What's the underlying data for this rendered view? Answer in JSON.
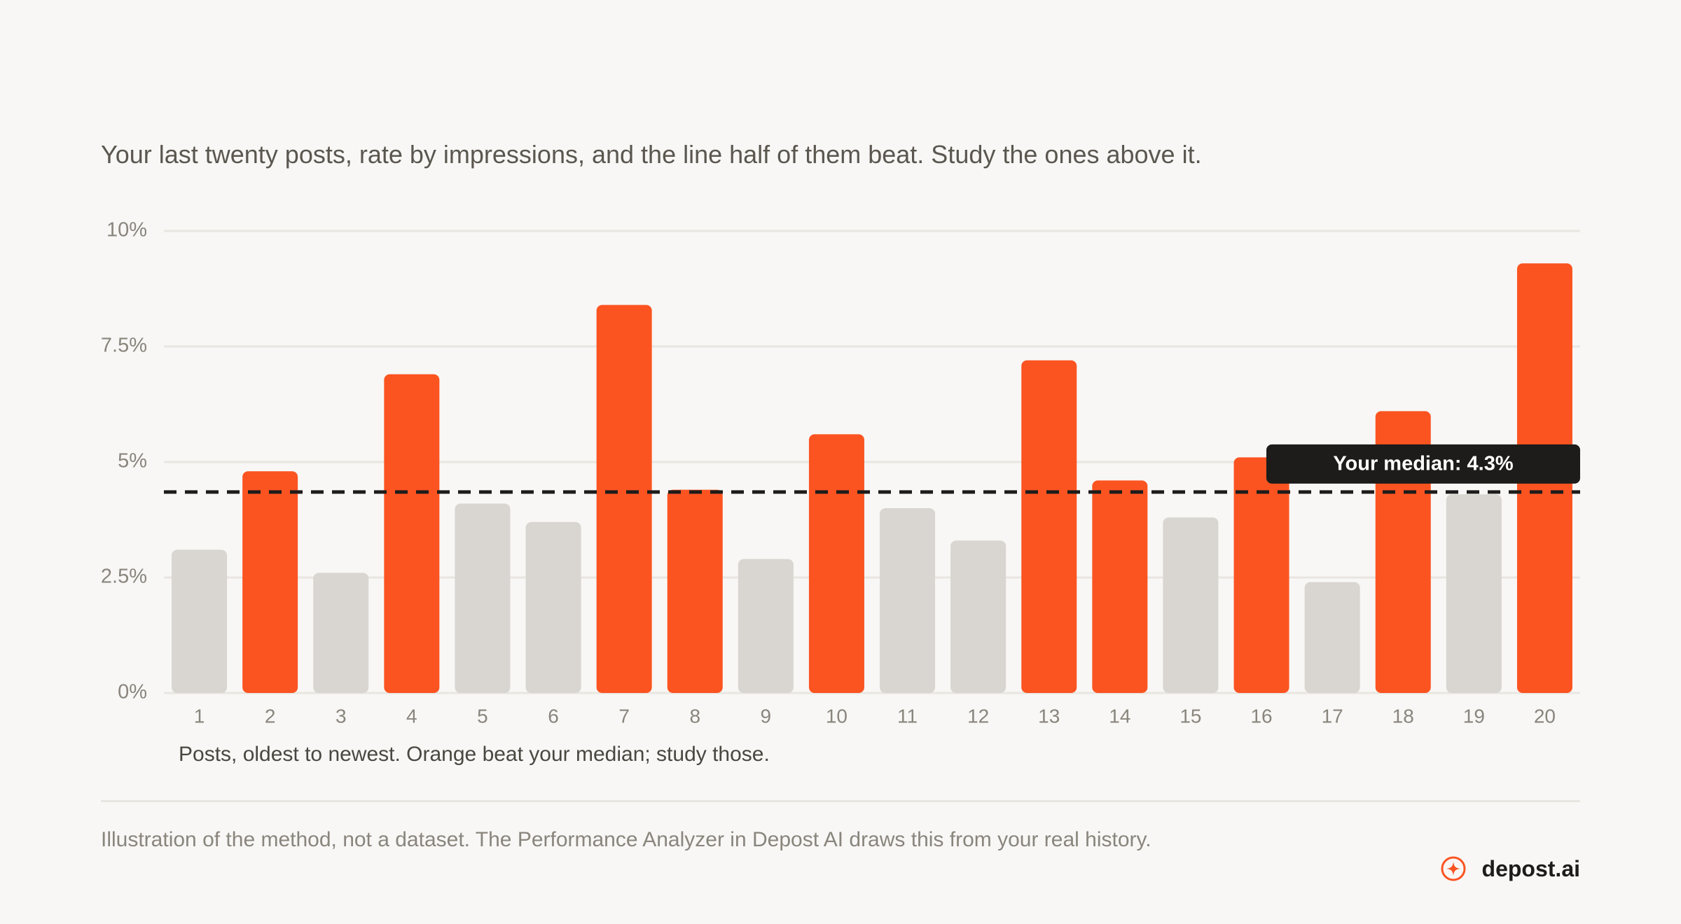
{
  "subtitle": "Your last twenty posts, rate by impressions, and the line half of them beat. Study the ones above it.",
  "chart_data": {
    "type": "bar",
    "categories": [
      "1",
      "2",
      "3",
      "4",
      "5",
      "6",
      "7",
      "8",
      "9",
      "10",
      "11",
      "12",
      "13",
      "14",
      "15",
      "16",
      "17",
      "18",
      "19",
      "20"
    ],
    "values": [
      3.1,
      4.8,
      2.6,
      6.9,
      4.1,
      3.7,
      8.4,
      4.4,
      2.9,
      5.6,
      4.0,
      3.3,
      7.2,
      4.6,
      3.8,
      5.1,
      2.4,
      6.1,
      4.3,
      9.3
    ],
    "ylim": [
      0,
      10
    ],
    "yticks": [
      0,
      2.5,
      5,
      7.5,
      10
    ],
    "ytick_labels": [
      "0%",
      "2.5%",
      "5%",
      "7.5%",
      "10%"
    ],
    "grid": true,
    "median": 4.35,
    "median_label": "Your median: 4.3%",
    "xlabel": "Posts, oldest to newest. Orange beat your median; study those.",
    "colors": {
      "above": "#fb5421",
      "below": "#d9d5d0",
      "median_line": "#1d1c1a",
      "grid": "#e9e6e1",
      "tick_text": "#8a857d"
    }
  },
  "footnote": "Illustration of the method, not a dataset. The Performance Analyzer in Depost AI draws this from your real history.",
  "brand": {
    "name": "depost.ai",
    "icon": "sparkle-circle-icon",
    "color": "#fb5421"
  }
}
